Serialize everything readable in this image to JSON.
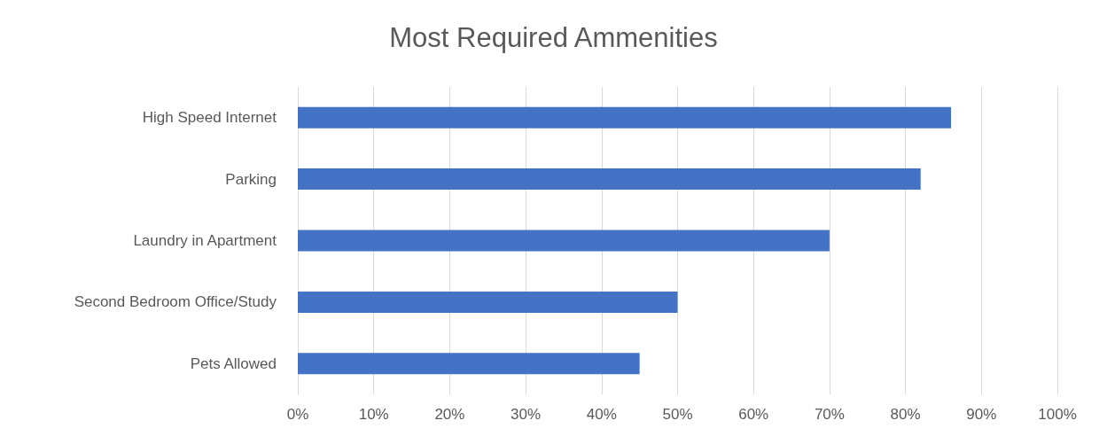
{
  "chart_data": {
    "type": "bar",
    "orientation": "horizontal",
    "title": "Most Required Ammenities",
    "categories": [
      "High Speed Internet",
      "Parking",
      "Laundry in Apartment",
      "Second Bedroom Office/Study",
      "Pets Allowed"
    ],
    "values": [
      86,
      82,
      70,
      50,
      45
    ],
    "color": "#4472c4",
    "xlim": [
      0,
      100
    ],
    "xticks": [
      {
        "value": 0,
        "label": "0%"
      },
      {
        "value": 10,
        "label": "10%"
      },
      {
        "value": 20,
        "label": "20%"
      },
      {
        "value": 30,
        "label": "30%"
      },
      {
        "value": 40,
        "label": "40%"
      },
      {
        "value": 50,
        "label": "50%"
      },
      {
        "value": 60,
        "label": "60%"
      },
      {
        "value": 70,
        "label": "70%"
      },
      {
        "value": 80,
        "label": "80%"
      },
      {
        "value": 90,
        "label": "90%"
      },
      {
        "value": 100,
        "label": "100%"
      }
    ],
    "grid": "x"
  }
}
